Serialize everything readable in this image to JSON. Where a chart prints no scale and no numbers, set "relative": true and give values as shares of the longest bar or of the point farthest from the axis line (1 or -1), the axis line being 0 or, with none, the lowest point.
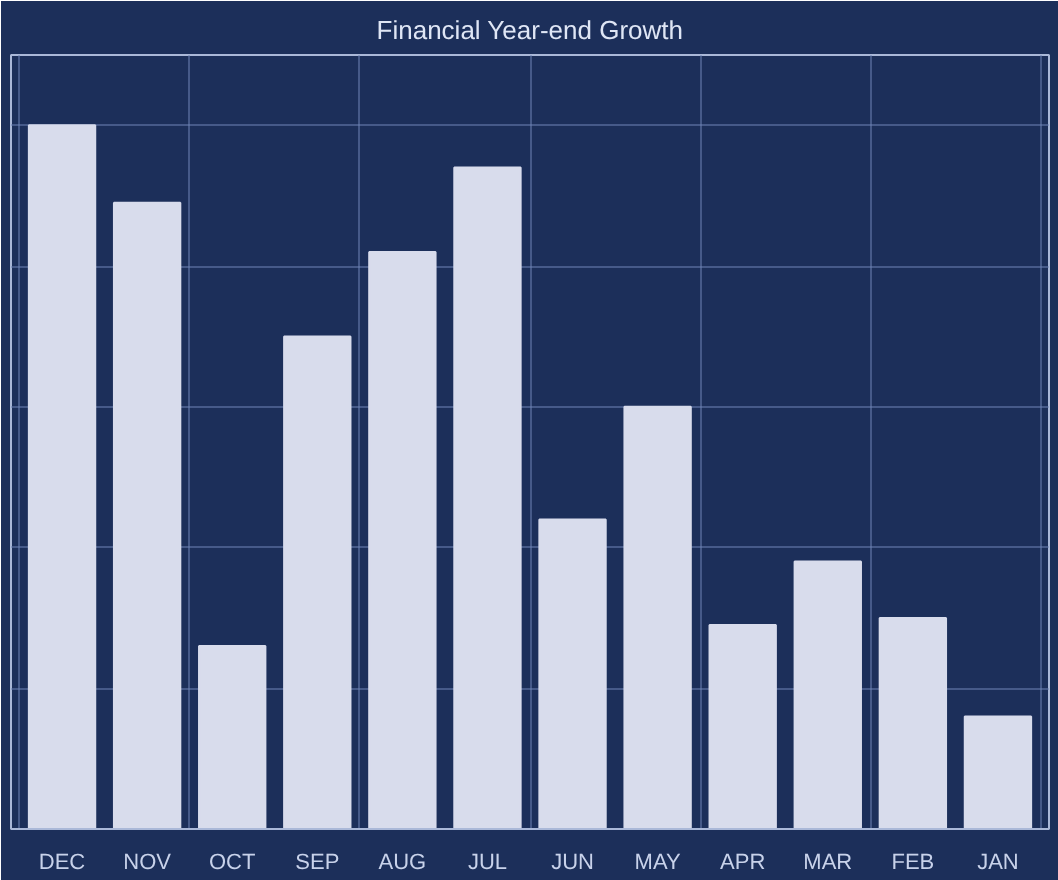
{
  "chart_data": {
    "type": "bar",
    "title": "Financial Year-end Growth",
    "relative": true,
    "categories": [
      "DEC",
      "NOV",
      "OCT",
      "SEP",
      "AUG",
      "JUL",
      "JUN",
      "MAY",
      "APR",
      "MAR",
      "FEB",
      "JAN"
    ],
    "values": [
      1,
      0.89,
      0.26,
      0.7,
      0.82,
      0.94,
      0.44,
      0.6,
      0.29,
      0.38,
      0.3,
      0.16
    ],
    "color": "#d8dcec",
    "grid": true
  }
}
